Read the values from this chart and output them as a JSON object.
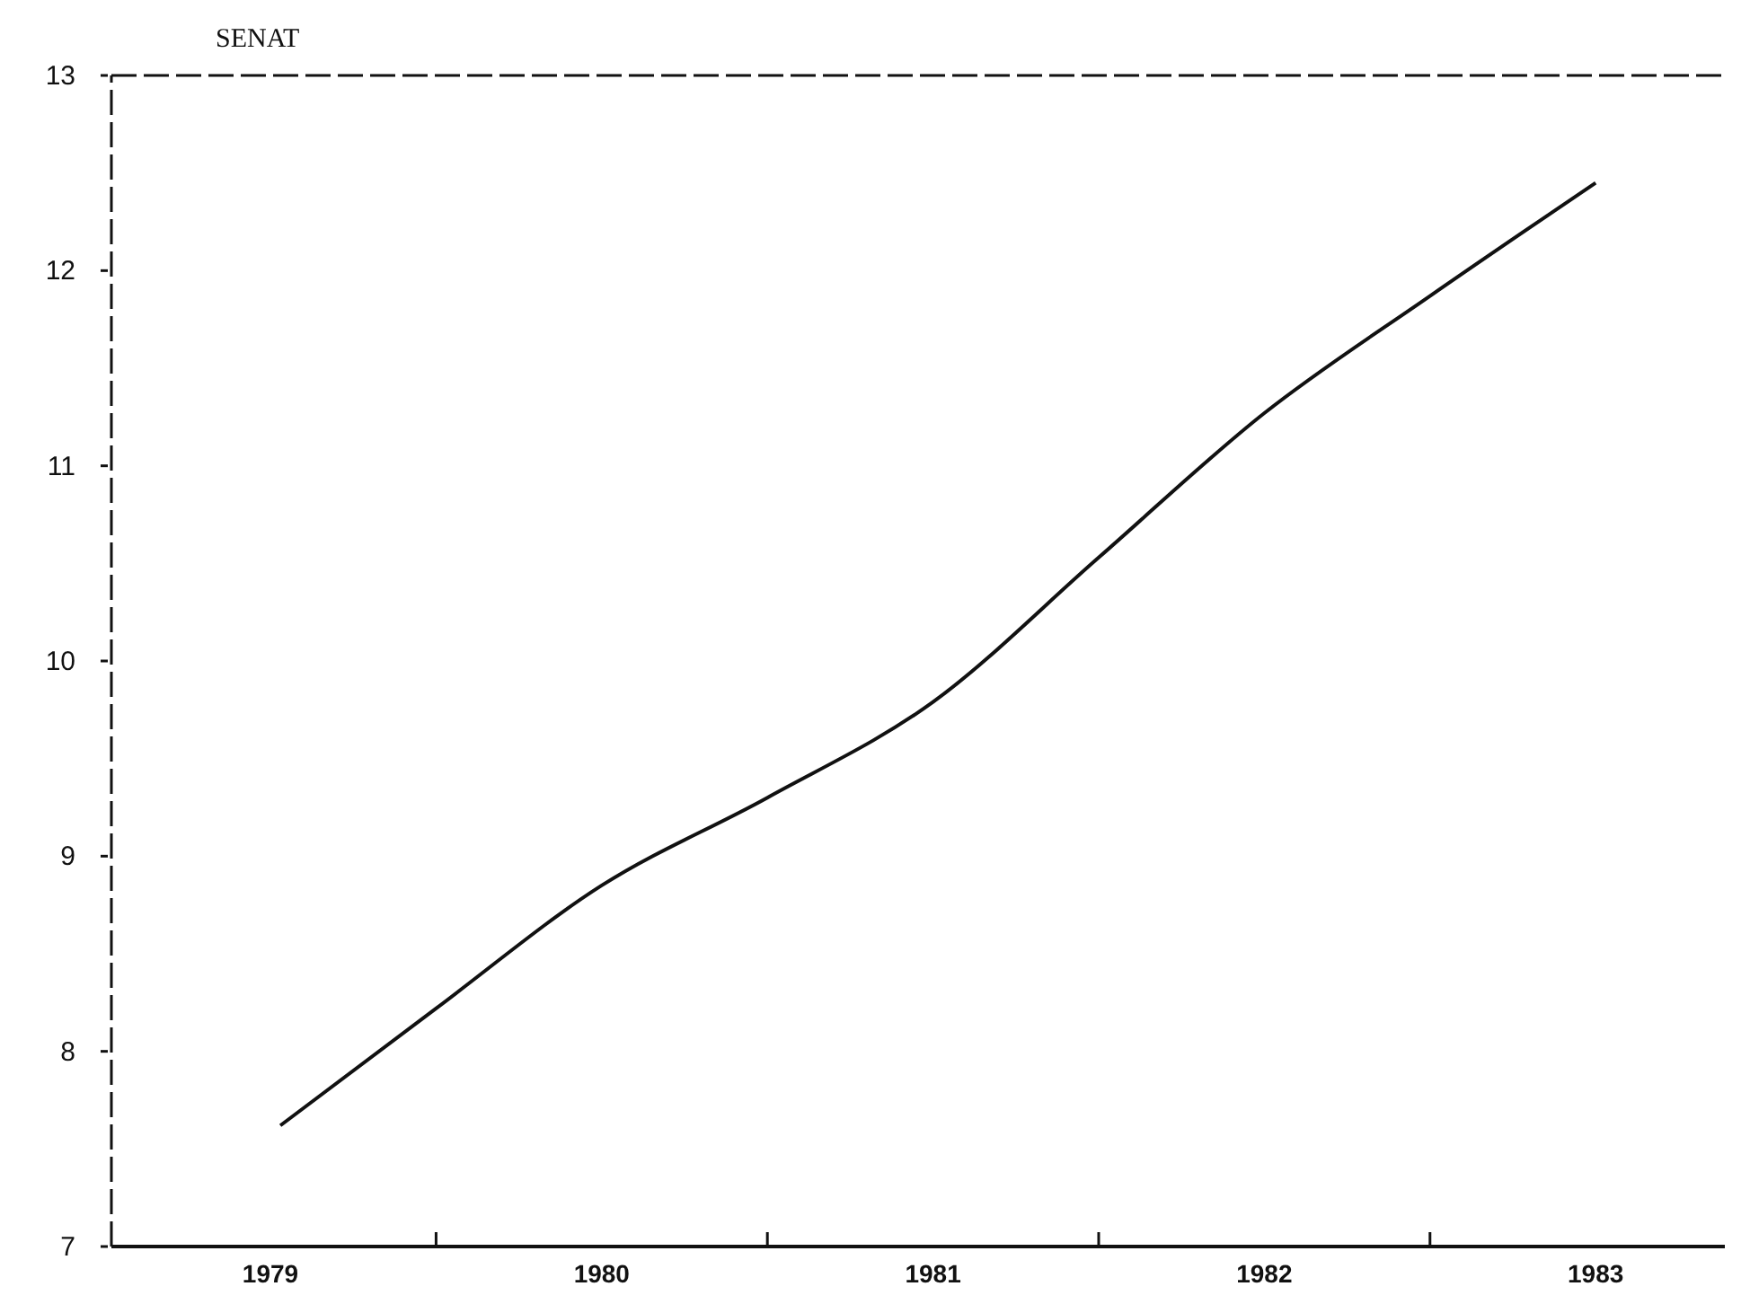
{
  "chart_data": {
    "type": "line",
    "title": "SENAT",
    "x": [
      1979.03,
      1979.5,
      1980,
      1980.5,
      1981,
      1981.5,
      1982,
      1982.5,
      1983
    ],
    "values": [
      7.62,
      8.22,
      8.85,
      9.3,
      9.79,
      10.53,
      11.27,
      11.87,
      12.45
    ],
    "color": "#111111",
    "xlim": [
      1978.52,
      1983.39
    ],
    "xticks": [
      1979,
      1980,
      1981,
      1982,
      1983,
      {
        "value": 1979.5,
        "label": null
      },
      {
        "value": 1980.5,
        "label": null
      },
      {
        "value": 1981.5,
        "label": null
      },
      {
        "value": 1982.5,
        "label": null
      }
    ],
    "ylim": [
      7,
      13
    ],
    "yticks": [
      7,
      8,
      9,
      10,
      11,
      12,
      13
    ],
    "grid": false,
    "marker": "none",
    "line_style": "solid"
  }
}
